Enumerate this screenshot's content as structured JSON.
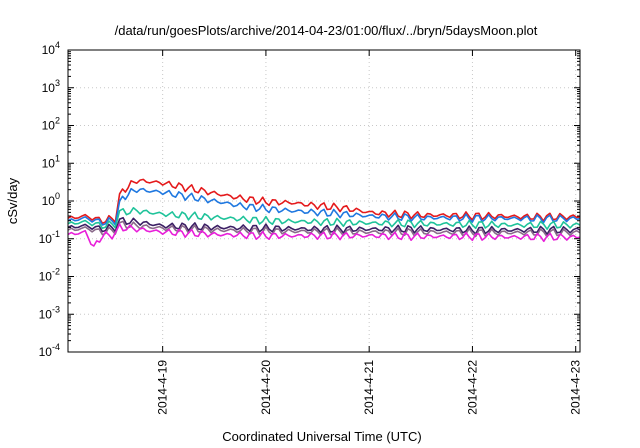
{
  "chart_data": {
    "type": "line",
    "title": "/data/run/goesPlots/archive/2014-04-23/01:00/flux/../bryn/5daysMoon.plot",
    "xlabel": "Coordinated Universal Time (UTC)",
    "ylabel": "cSv/day",
    "yscale": "log",
    "ylim": [
      0.0001,
      10000
    ],
    "xlim": [
      "2014-04-18T02:00",
      "2014-04-23T01:00"
    ],
    "grid": true,
    "y_ticks": [
      {
        "base": "10",
        "exp": "-4",
        "value": 0.0001
      },
      {
        "base": "10",
        "exp": "-3",
        "value": 0.001
      },
      {
        "base": "10",
        "exp": "-2",
        "value": 0.01
      },
      {
        "base": "10",
        "exp": "-1",
        "value": 0.1
      },
      {
        "base": "10",
        "exp": "0",
        "value": 1
      },
      {
        "base": "10",
        "exp": "1",
        "value": 10
      },
      {
        "base": "10",
        "exp": "2",
        "value": 100
      },
      {
        "base": "10",
        "exp": "3",
        "value": 1000
      },
      {
        "base": "10",
        "exp": "4",
        "value": 10000
      }
    ],
    "x_ticks": [
      {
        "label": "2014-4-19",
        "value": "2014-04-19T00:00"
      },
      {
        "label": "2014-4-20",
        "value": "2014-04-20T00:00"
      },
      {
        "label": "2014-4-21",
        "value": "2014-04-21T00:00"
      },
      {
        "label": "2014-4-22",
        "value": "2014-04-22T00:00"
      },
      {
        "label": "2014-4-23",
        "value": "2014-04-23T00:00"
      }
    ],
    "series": [
      {
        "color": "#e41a1c",
        "points": [
          [
            "2014-04-18T02:00",
            0.35
          ],
          [
            "2014-04-18T06:00",
            0.4
          ],
          [
            "2014-04-18T10:00",
            0.3
          ],
          [
            "2014-04-18T13:00",
            0.35
          ],
          [
            "2014-04-18T14:00",
            1.4
          ],
          [
            "2014-04-18T16:00",
            2.5
          ],
          [
            "2014-04-18T18:00",
            3.5
          ],
          [
            "2014-04-19T00:00",
            3.0
          ],
          [
            "2014-04-19T06:00",
            2.2
          ],
          [
            "2014-04-19T12:00",
            1.6
          ],
          [
            "2014-04-19T18:00",
            1.2
          ],
          [
            "2014-04-20T00:00",
            0.95
          ],
          [
            "2014-04-20T06:00",
            0.9
          ],
          [
            "2014-04-20T12:00",
            0.75
          ],
          [
            "2014-04-20T18:00",
            0.65
          ],
          [
            "2014-04-21T00:00",
            0.5
          ],
          [
            "2014-04-21T06:00",
            0.45
          ],
          [
            "2014-04-21T12:00",
            0.42
          ],
          [
            "2014-04-21T18:00",
            0.42
          ],
          [
            "2014-04-22T00:00",
            0.4
          ],
          [
            "2014-04-22T06:00",
            0.4
          ],
          [
            "2014-04-22T12:00",
            0.38
          ],
          [
            "2014-04-22T18:00",
            0.38
          ],
          [
            "2014-04-23T01:00",
            0.38
          ]
        ]
      },
      {
        "color": "#1f78e0",
        "points": [
          [
            "2014-04-18T02:00",
            0.3
          ],
          [
            "2014-04-18T06:00",
            0.35
          ],
          [
            "2014-04-18T10:00",
            0.27
          ],
          [
            "2014-04-18T13:00",
            0.3
          ],
          [
            "2014-04-18T14:00",
            0.9
          ],
          [
            "2014-04-18T16:00",
            1.6
          ],
          [
            "2014-04-18T18:00",
            2.0
          ],
          [
            "2014-04-19T00:00",
            1.7
          ],
          [
            "2014-04-19T06:00",
            1.3
          ],
          [
            "2014-04-19T12:00",
            1.0
          ],
          [
            "2014-04-19T18:00",
            0.75
          ],
          [
            "2014-04-20T00:00",
            0.62
          ],
          [
            "2014-04-20T06:00",
            0.55
          ],
          [
            "2014-04-20T12:00",
            0.5
          ],
          [
            "2014-04-20T18:00",
            0.45
          ],
          [
            "2014-04-21T00:00",
            0.4
          ],
          [
            "2014-04-21T06:00",
            0.38
          ],
          [
            "2014-04-21T12:00",
            0.36
          ],
          [
            "2014-04-21T18:00",
            0.36
          ],
          [
            "2014-04-22T00:00",
            0.35
          ],
          [
            "2014-04-22T06:00",
            0.35
          ],
          [
            "2014-04-22T12:00",
            0.34
          ],
          [
            "2014-04-22T18:00",
            0.34
          ],
          [
            "2014-04-23T01:00",
            0.34
          ]
        ]
      },
      {
        "color": "#1fc39a",
        "points": [
          [
            "2014-04-18T02:00",
            0.25
          ],
          [
            "2014-04-18T06:00",
            0.28
          ],
          [
            "2014-04-18T10:00",
            0.22
          ],
          [
            "2014-04-18T13:00",
            0.25
          ],
          [
            "2014-04-18T14:00",
            0.5
          ],
          [
            "2014-04-18T18:00",
            0.55
          ],
          [
            "2014-04-19T00:00",
            0.45
          ],
          [
            "2014-04-19T12:00",
            0.37
          ],
          [
            "2014-04-20T00:00",
            0.3
          ],
          [
            "2014-04-20T12:00",
            0.28
          ],
          [
            "2014-04-21T00:00",
            0.26
          ],
          [
            "2014-04-21T12:00",
            0.25
          ],
          [
            "2014-04-22T00:00",
            0.24
          ],
          [
            "2014-04-22T12:00",
            0.23
          ],
          [
            "2014-04-23T01:00",
            0.23
          ]
        ]
      },
      {
        "color": "#3c1f64",
        "points": [
          [
            "2014-04-18T02:00",
            0.2
          ],
          [
            "2014-04-18T06:00",
            0.22
          ],
          [
            "2014-04-18T10:00",
            0.18
          ],
          [
            "2014-04-18T13:00",
            0.2
          ],
          [
            "2014-04-18T14:00",
            0.3
          ],
          [
            "2014-04-18T18:00",
            0.28
          ],
          [
            "2014-04-19T00:00",
            0.22
          ],
          [
            "2014-04-19T12:00",
            0.2
          ],
          [
            "2014-04-20T00:00",
            0.19
          ],
          [
            "2014-04-20T12:00",
            0.18
          ],
          [
            "2014-04-21T00:00",
            0.18
          ],
          [
            "2014-04-21T12:00",
            0.18
          ],
          [
            "2014-04-22T00:00",
            0.17
          ],
          [
            "2014-04-22T12:00",
            0.17
          ],
          [
            "2014-04-23T01:00",
            0.17
          ]
        ]
      },
      {
        "color": "#8a6a8a",
        "points": [
          [
            "2014-04-18T02:00",
            0.17
          ],
          [
            "2014-04-18T06:00",
            0.19
          ],
          [
            "2014-04-18T10:00",
            0.15
          ],
          [
            "2014-04-18T13:00",
            0.17
          ],
          [
            "2014-04-18T14:00",
            0.24
          ],
          [
            "2014-04-18T18:00",
            0.22
          ],
          [
            "2014-04-19T00:00",
            0.19
          ],
          [
            "2014-04-19T12:00",
            0.17
          ],
          [
            "2014-04-20T00:00",
            0.16
          ],
          [
            "2014-04-20T12:00",
            0.155
          ],
          [
            "2014-04-21T00:00",
            0.15
          ],
          [
            "2014-04-21T12:00",
            0.15
          ],
          [
            "2014-04-22T00:00",
            0.145
          ],
          [
            "2014-04-22T12:00",
            0.145
          ],
          [
            "2014-04-23T01:00",
            0.145
          ]
        ]
      },
      {
        "color": "#e81fd9",
        "points": [
          [
            "2014-04-18T02:00",
            0.13
          ],
          [
            "2014-04-18T06:00",
            0.15
          ],
          [
            "2014-04-18T08:00",
            0.06
          ],
          [
            "2014-04-18T10:00",
            0.12
          ],
          [
            "2014-04-18T13:00",
            0.13
          ],
          [
            "2014-04-18T14:00",
            0.2
          ],
          [
            "2014-04-18T18:00",
            0.18
          ],
          [
            "2014-04-19T00:00",
            0.15
          ],
          [
            "2014-04-19T12:00",
            0.13
          ],
          [
            "2014-04-20T00:00",
            0.12
          ],
          [
            "2014-04-20T12:00",
            0.12
          ],
          [
            "2014-04-21T00:00",
            0.12
          ],
          [
            "2014-04-21T12:00",
            0.115
          ],
          [
            "2014-04-22T00:00",
            0.115
          ],
          [
            "2014-04-22T12:00",
            0.11
          ],
          [
            "2014-04-23T01:00",
            0.11
          ]
        ]
      }
    ]
  }
}
